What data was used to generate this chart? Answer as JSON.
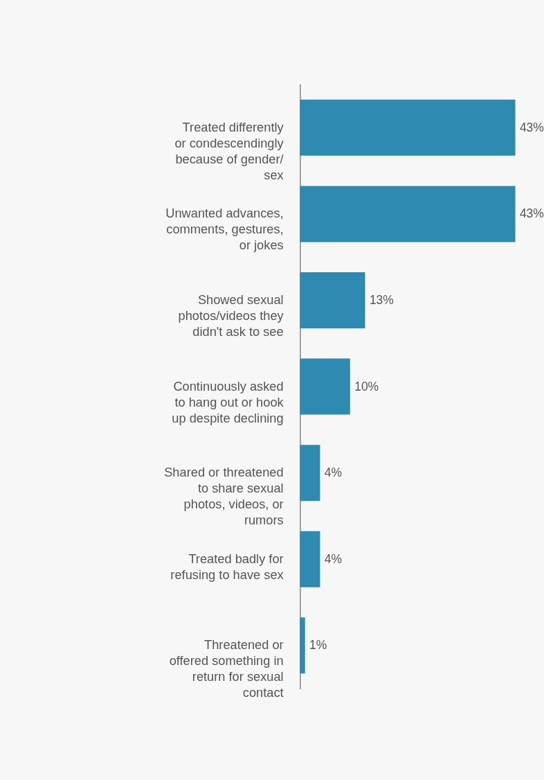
{
  "chart_data": {
    "type": "bar",
    "orientation": "horizontal",
    "tick_labels": "y",
    "categories": [
      "Treated differently or condescendingly because of gender/ sex",
      "Unwanted advances, comments, gestures, or jokes",
      "Showed sexual photos/videos they didn't ask to see",
      "Continuously asked to hang out or hook up despite declining",
      "Shared or threatened to share sexual photos, videos, or rumors",
      "Treated badly for refusing to have sex",
      "Threatened or offered something in return for sexual contact"
    ],
    "values": [
      43,
      43,
      13,
      10,
      4,
      4,
      1
    ],
    "value_labels": [
      "43%",
      "43%",
      "13%",
      "10%",
      "4%",
      "4%",
      "1%"
    ],
    "color": "#2e8ab0"
  }
}
